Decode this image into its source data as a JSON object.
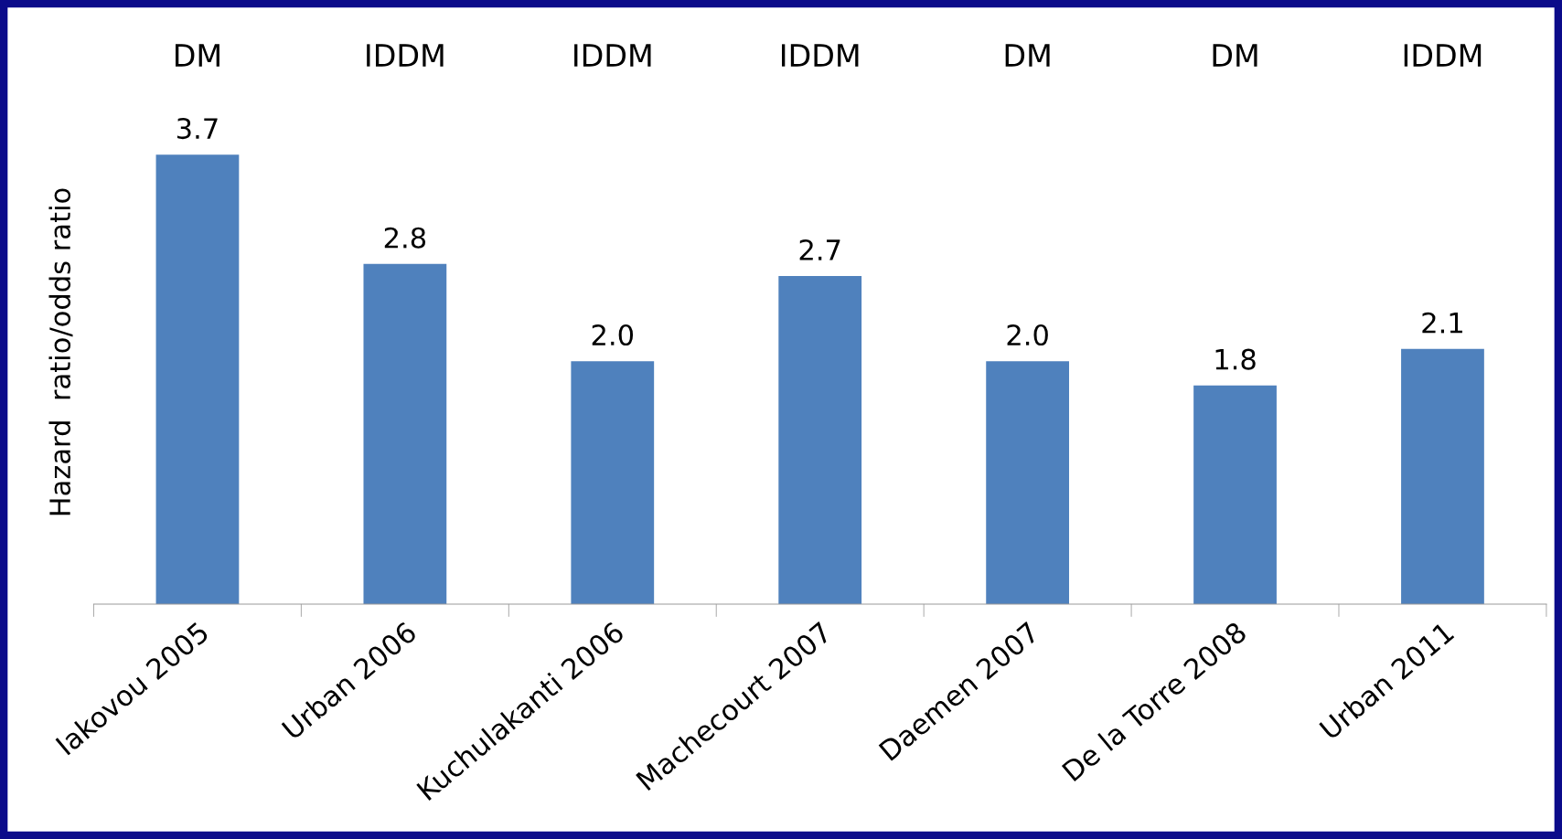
{
  "chart_data": {
    "type": "bar",
    "ylabel": "Hazard  ratio/odds ratio",
    "categories": [
      "Iakovou 2005",
      "Urban 2006",
      "Kuchulakanti 2006",
      "Machecourt 2007",
      "Daemen 2007",
      "De la Torre 2008",
      "Urban 2011"
    ],
    "values": [
      3.7,
      2.8,
      2.0,
      2.7,
      2.0,
      1.8,
      2.1
    ],
    "value_labels": [
      "3.7",
      "2.8",
      "2.0",
      "2.7",
      "2.0",
      "1.8",
      "2.1"
    ],
    "color": "#4f81bd",
    "grid": false,
    "tick_labels": "x",
    "annotations": [
      "DM",
      "IDDM",
      "IDDM",
      "IDDM",
      "DM",
      "DM",
      "IDDM"
    ]
  }
}
